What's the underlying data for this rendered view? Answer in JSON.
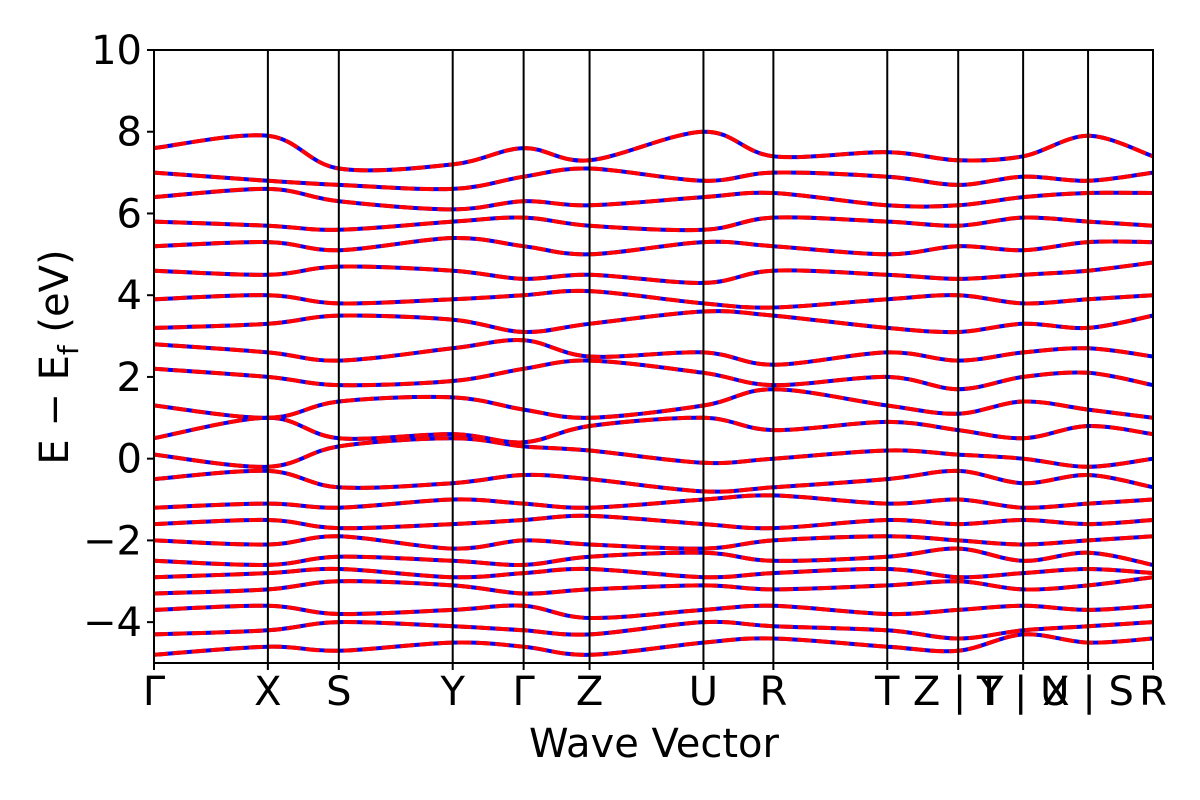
{
  "chart_data": {
    "type": "line",
    "title": "",
    "xlabel": "Wave Vector",
    "ylabel": "E − E",
    "ylabel_subscript": "f",
    "ylabel_unit": "(eV)",
    "ylim": [
      -5,
      10
    ],
    "yticks": [
      -4,
      -2,
      0,
      2,
      4,
      6,
      8,
      10
    ],
    "ytick_labels": [
      "−4",
      "−2",
      "0",
      "2",
      "4",
      "6",
      "8",
      "10"
    ],
    "xlim": [
      0,
      1
    ],
    "kpath_positions": [
      0,
      0.114,
      0.185,
      0.299,
      0.37,
      0.436,
      0.55,
      0.62,
      0.734,
      0.805,
      0.87,
      0.935,
      1.0
    ],
    "kpath_labels": [
      "Γ",
      "X",
      "S",
      "Y",
      "Γ",
      "Z",
      "U",
      "R",
      "T",
      "Z | Y",
      "T | U",
      "X | S",
      "R"
    ],
    "grid": false,
    "legend": "none",
    "colors": {
      "series_solid": "#0000ff",
      "series_dashed": "#ff0000",
      "axes": "#000000"
    },
    "series": [
      {
        "style": "solid",
        "color": "#0000ff"
      },
      {
        "style": "dashed",
        "color": "#ff0000"
      }
    ],
    "bands": [
      [
        -4.8,
        -4.6,
        -4.7,
        -4.5,
        -4.6,
        -4.8,
        -4.5,
        -4.4,
        -4.6,
        -4.7,
        -4.3,
        -4.5,
        -4.4
      ],
      [
        -4.3,
        -4.2,
        -4.0,
        -4.1,
        -4.2,
        -4.3,
        -4.0,
        -4.1,
        -4.2,
        -4.4,
        -4.2,
        -4.1,
        -4.0
      ],
      [
        -3.7,
        -3.6,
        -3.8,
        -3.7,
        -3.6,
        -3.9,
        -3.7,
        -3.6,
        -3.8,
        -3.7,
        -3.6,
        -3.7,
        -3.6
      ],
      [
        -3.3,
        -3.2,
        -3.0,
        -3.1,
        -3.3,
        -3.2,
        -3.1,
        -3.2,
        -3.1,
        -3.0,
        -3.2,
        -3.1,
        -2.9
      ],
      [
        -2.9,
        -2.8,
        -2.7,
        -2.9,
        -2.8,
        -2.7,
        -2.9,
        -2.8,
        -2.7,
        -2.9,
        -2.8,
        -2.7,
        -2.8
      ],
      [
        -2.5,
        -2.6,
        -2.4,
        -2.5,
        -2.6,
        -2.4,
        -2.3,
        -2.5,
        -2.4,
        -2.2,
        -2.5,
        -2.3,
        -2.6
      ],
      [
        -2.0,
        -2.1,
        -1.9,
        -2.2,
        -2.0,
        -2.1,
        -2.2,
        -2.0,
        -1.9,
        -2.0,
        -2.1,
        -2.0,
        -1.9
      ],
      [
        -1.6,
        -1.5,
        -1.7,
        -1.6,
        -1.5,
        -1.4,
        -1.6,
        -1.7,
        -1.5,
        -1.6,
        -1.5,
        -1.6,
        -1.5
      ],
      [
        -1.2,
        -1.1,
        -1.2,
        -1.0,
        -1.1,
        -1.2,
        -1.0,
        -0.9,
        -1.1,
        -1.0,
        -1.2,
        -1.1,
        -1.0
      ],
      [
        -0.5,
        -0.3,
        -0.7,
        -0.6,
        -0.4,
        -0.5,
        -0.8,
        -0.7,
        -0.5,
        -0.3,
        -0.6,
        -0.4,
        -0.7
      ],
      [
        0.1,
        -0.2,
        0.3,
        0.5,
        0.3,
        0.2,
        -0.1,
        0.0,
        0.2,
        0.1,
        0.0,
        -0.2,
        0.0
      ],
      [
        0.5,
        1.0,
        0.5,
        0.6,
        0.4,
        0.8,
        1.0,
        0.7,
        0.9,
        0.7,
        0.5,
        0.8,
        0.6
      ],
      [
        1.3,
        1.0,
        1.4,
        1.5,
        1.2,
        1.0,
        1.3,
        1.7,
        1.3,
        1.1,
        1.4,
        1.2,
        1.0
      ],
      [
        2.2,
        2.0,
        1.8,
        1.9,
        2.2,
        2.4,
        2.1,
        1.8,
        2.0,
        1.7,
        2.0,
        2.1,
        1.8
      ],
      [
        2.8,
        2.6,
        2.4,
        2.7,
        2.9,
        2.5,
        2.6,
        2.3,
        2.6,
        2.4,
        2.6,
        2.7,
        2.5
      ],
      [
        3.2,
        3.3,
        3.5,
        3.4,
        3.1,
        3.3,
        3.6,
        3.5,
        3.2,
        3.1,
        3.3,
        3.2,
        3.5
      ],
      [
        3.9,
        4.0,
        3.8,
        3.9,
        4.0,
        4.1,
        3.8,
        3.7,
        3.9,
        4.0,
        3.8,
        3.9,
        4.0
      ],
      [
        4.6,
        4.5,
        4.7,
        4.6,
        4.4,
        4.5,
        4.3,
        4.6,
        4.5,
        4.4,
        4.5,
        4.6,
        4.8
      ],
      [
        5.2,
        5.3,
        5.1,
        5.4,
        5.2,
        5.0,
        5.3,
        5.2,
        5.0,
        5.2,
        5.1,
        5.3,
        5.3
      ],
      [
        5.8,
        5.7,
        5.6,
        5.8,
        5.9,
        5.7,
        5.6,
        5.9,
        5.8,
        5.7,
        5.9,
        5.8,
        5.7
      ],
      [
        6.4,
        6.6,
        6.3,
        6.1,
        6.3,
        6.2,
        6.4,
        6.5,
        6.2,
        6.2,
        6.4,
        6.5,
        6.5
      ],
      [
        7.0,
        6.8,
        6.7,
        6.6,
        6.9,
        7.1,
        6.8,
        7.0,
        6.9,
        6.7,
        6.9,
        6.8,
        7.0
      ],
      [
        7.6,
        7.9,
        7.1,
        7.2,
        7.6,
        7.3,
        8.0,
        7.4,
        7.5,
        7.3,
        7.4,
        7.9,
        7.4
      ]
    ]
  }
}
